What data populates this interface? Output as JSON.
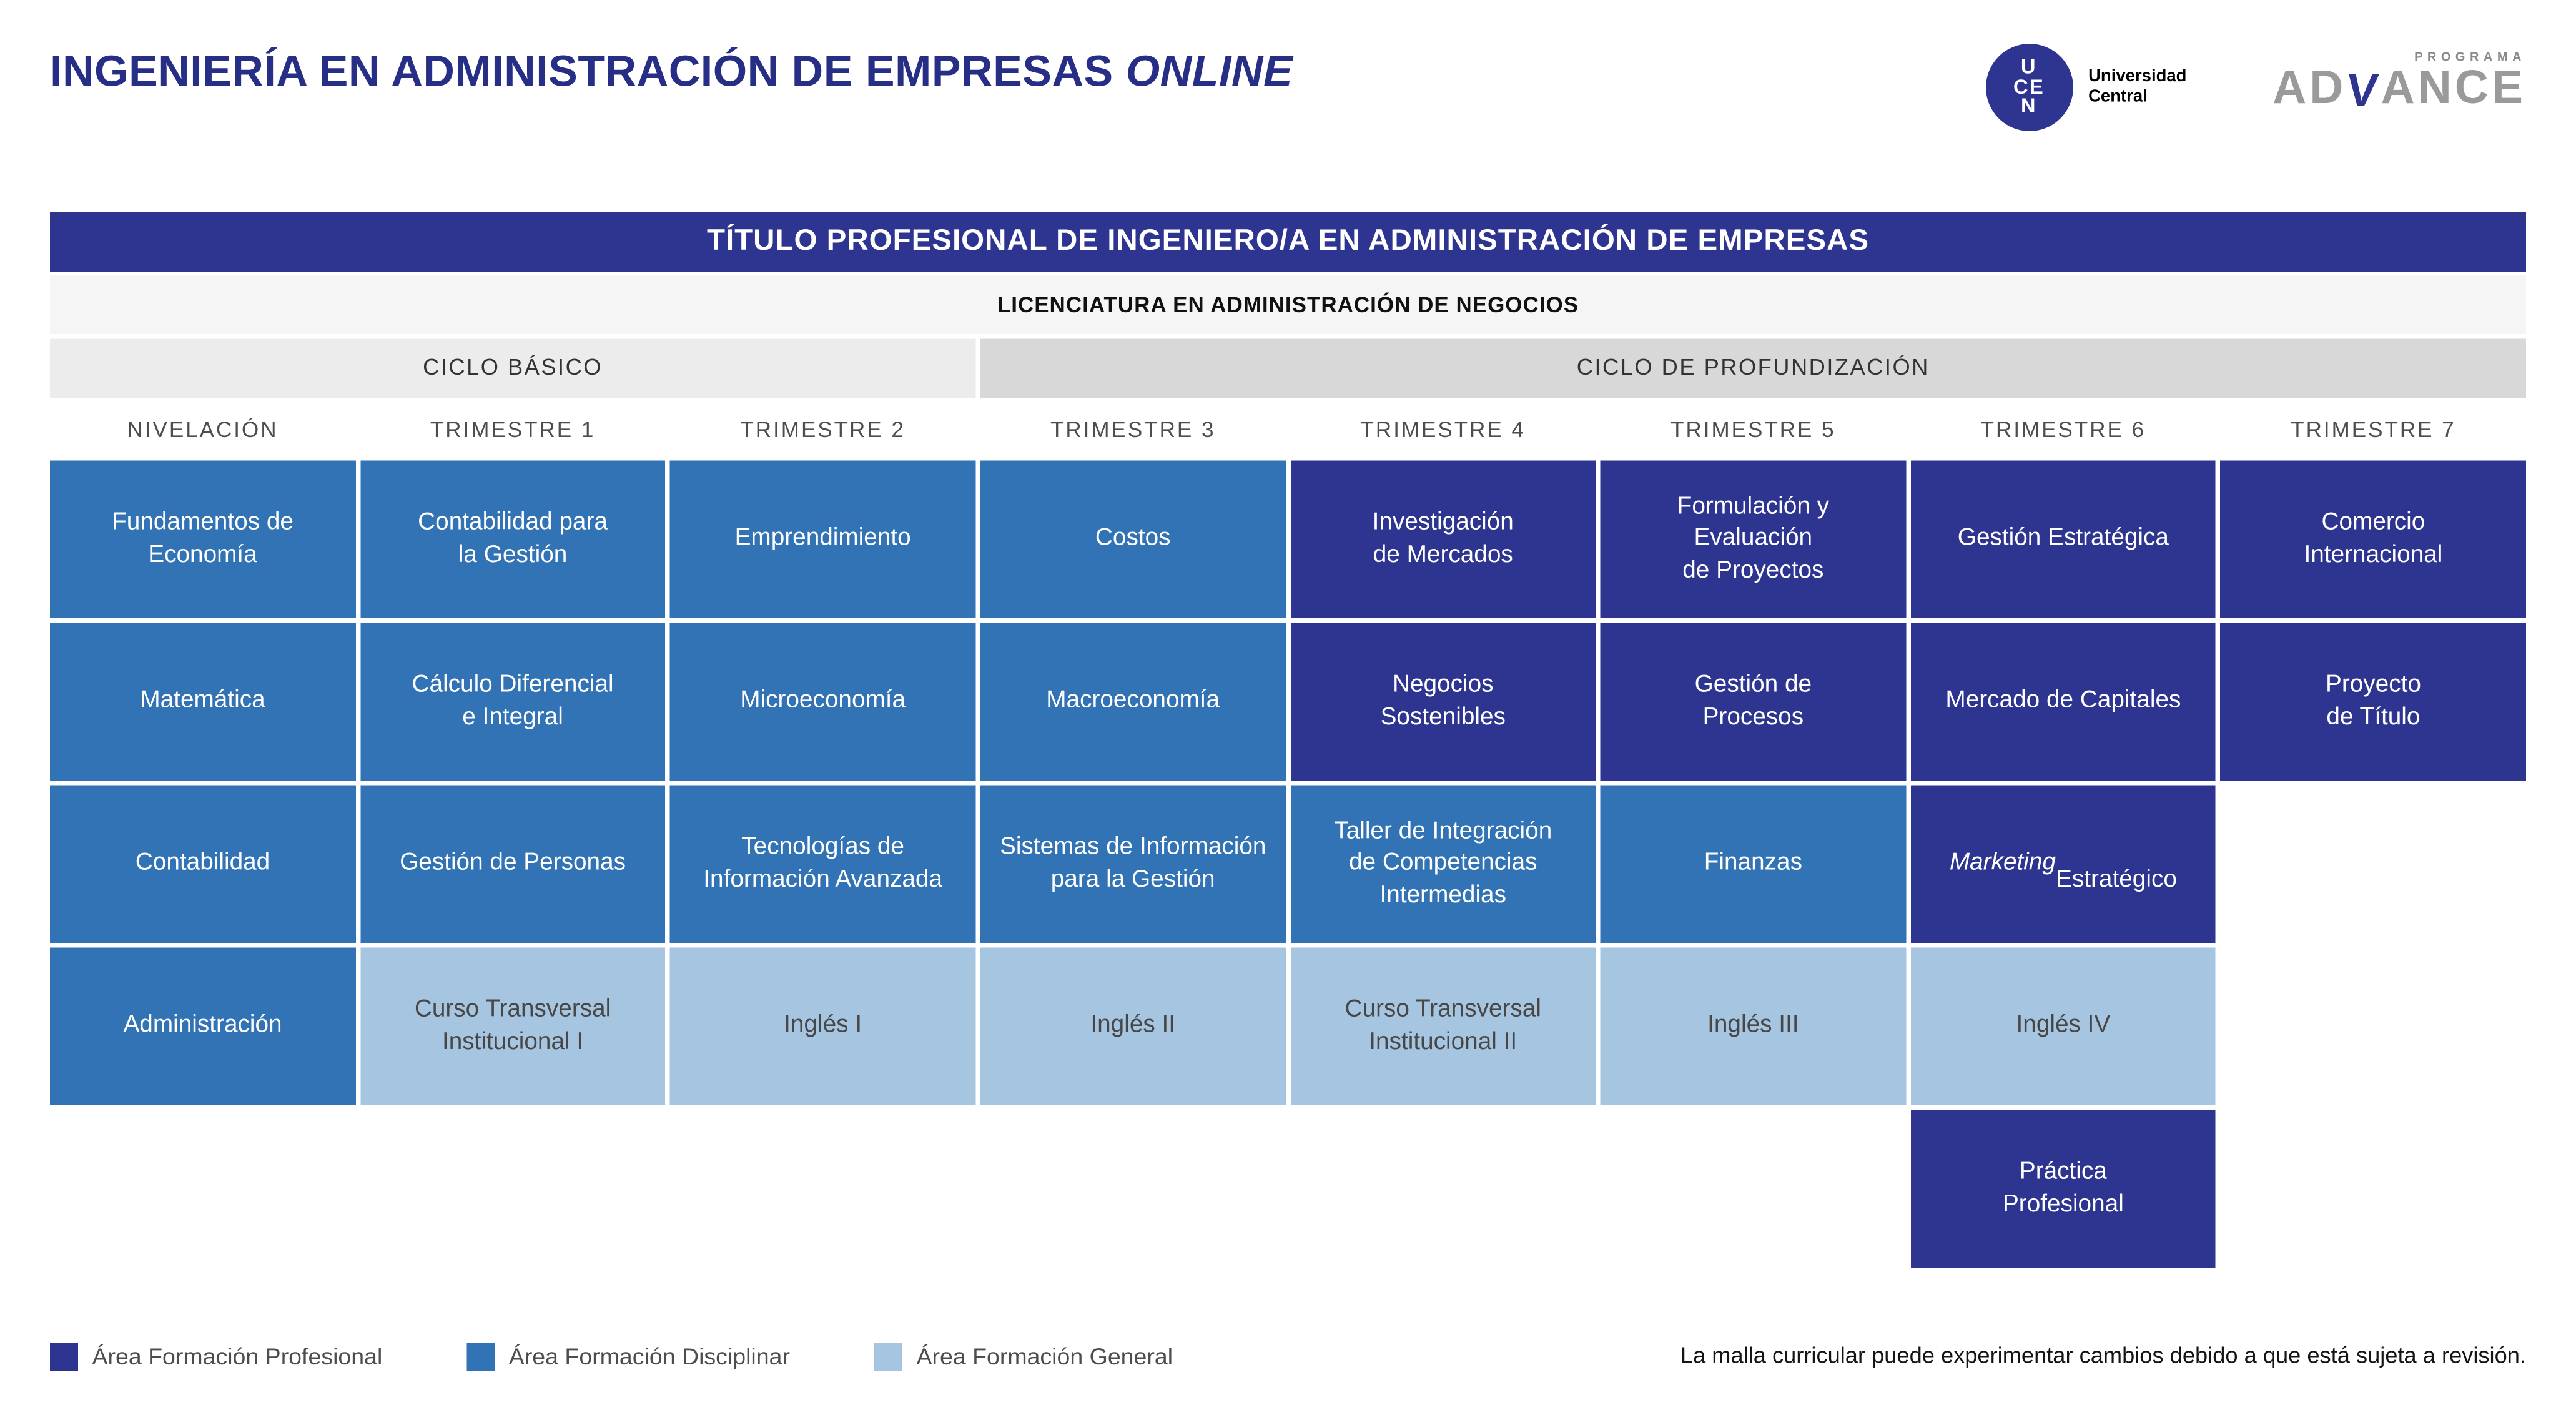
{
  "page": {
    "title_main": "INGENIERÍA EN ADMINISTRACIÓN DE EMPRESAS",
    "title_italic": "ONLINE",
    "note": "La malla curricular puede experimentar cambios debido a que está sujeta a revisión."
  },
  "logos": {
    "ucen_letters": [
      "U",
      "CE",
      "N"
    ],
    "ucen_label": "Universidad Central",
    "advance_top": "PROGRAMA",
    "advance_left": "AD",
    "advance_v": "V",
    "advance_right": "ANCE"
  },
  "banners": {
    "degree": "TÍTULO PROFESIONAL DE INGENIERO/A EN ADMINISTRACIÓN DE EMPRESAS",
    "licentiate": "LICENCIATURA EN ADMINISTRACIÓN DE NEGOCIOS"
  },
  "cycles": [
    {
      "label": "CICLO BÁSICO",
      "span": 3
    },
    {
      "label": "CICLO DE PROFUNDIZACIÓN",
      "span": 5
    }
  ],
  "columns": [
    "NIVELACIÓN",
    "TRIMESTRE 1",
    "TRIMESTRE 2",
    "TRIMESTRE 3",
    "TRIMESTRE 4",
    "TRIMESTRE 5",
    "TRIMESTRE 6",
    "TRIMESTRE 7"
  ],
  "areas": {
    "profesional": {
      "label": "Área Formación Profesional",
      "color": "#2e3591"
    },
    "disciplinar": {
      "label": "Área Formación Disciplinar",
      "color": "#3173b4"
    },
    "general": {
      "label": "Área Formación General",
      "color": "#a5c5e1"
    }
  },
  "legend_order": [
    "profesional",
    "disciplinar",
    "general"
  ],
  "grid": [
    [
      {
        "text": "Fundamentos de\nEconomía",
        "area": "disciplinar"
      },
      {
        "text": "Contabilidad para\nla Gestión",
        "area": "disciplinar"
      },
      {
        "text": "Emprendimiento",
        "area": "disciplinar"
      },
      {
        "text": "Costos",
        "area": "disciplinar"
      },
      {
        "text": "Investigación\nde Mercados",
        "area": "profesional"
      },
      {
        "text": "Formulación y\nEvaluación\nde Proyectos",
        "area": "profesional"
      },
      {
        "text": "Gestión Estratégica",
        "area": "profesional"
      },
      {
        "text": "Comercio\nInternacional",
        "area": "profesional"
      }
    ],
    [
      {
        "text": "Matemática",
        "area": "disciplinar"
      },
      {
        "text": "Cálculo Diferencial\ne Integral",
        "area": "disciplinar"
      },
      {
        "text": "Microeconomía",
        "area": "disciplinar"
      },
      {
        "text": "Macroeconomía",
        "area": "disciplinar"
      },
      {
        "text": "Negocios\nSostenibles",
        "area": "profesional"
      },
      {
        "text": "Gestión de\nProcesos",
        "area": "profesional"
      },
      {
        "text": "Mercado de Capitales",
        "area": "profesional"
      },
      {
        "text": "Proyecto\nde Título",
        "area": "profesional"
      }
    ],
    [
      {
        "text": "Contabilidad",
        "area": "disciplinar"
      },
      {
        "text": "Gestión de Personas",
        "area": "disciplinar"
      },
      {
        "text": "Tecnologías de\nInformación Avanzada",
        "area": "disciplinar"
      },
      {
        "text": "Sistemas de Información\npara la Gestión",
        "area": "disciplinar"
      },
      {
        "text": "Taller de Integración\nde Competencias\nIntermedias",
        "area": "disciplinar"
      },
      {
        "text": "Finanzas",
        "area": "disciplinar"
      },
      {
        "italic": "Marketing",
        "text": "Estratégico",
        "area": "profesional"
      },
      null
    ],
    [
      {
        "text": "Administración",
        "area": "disciplinar"
      },
      {
        "text": "Curso Transversal\nInstitucional I",
        "area": "general"
      },
      {
        "text": "Inglés I",
        "area": "general"
      },
      {
        "text": "Inglés II",
        "area": "general"
      },
      {
        "text": "Curso Transversal\nInstitucional II",
        "area": "general"
      },
      {
        "text": "Inglés III",
        "area": "general"
      },
      {
        "text": "Inglés IV",
        "area": "general"
      },
      null
    ],
    [
      null,
      null,
      null,
      null,
      null,
      null,
      {
        "text": "Práctica\nProfesional",
        "area": "profesional"
      },
      null
    ]
  ]
}
